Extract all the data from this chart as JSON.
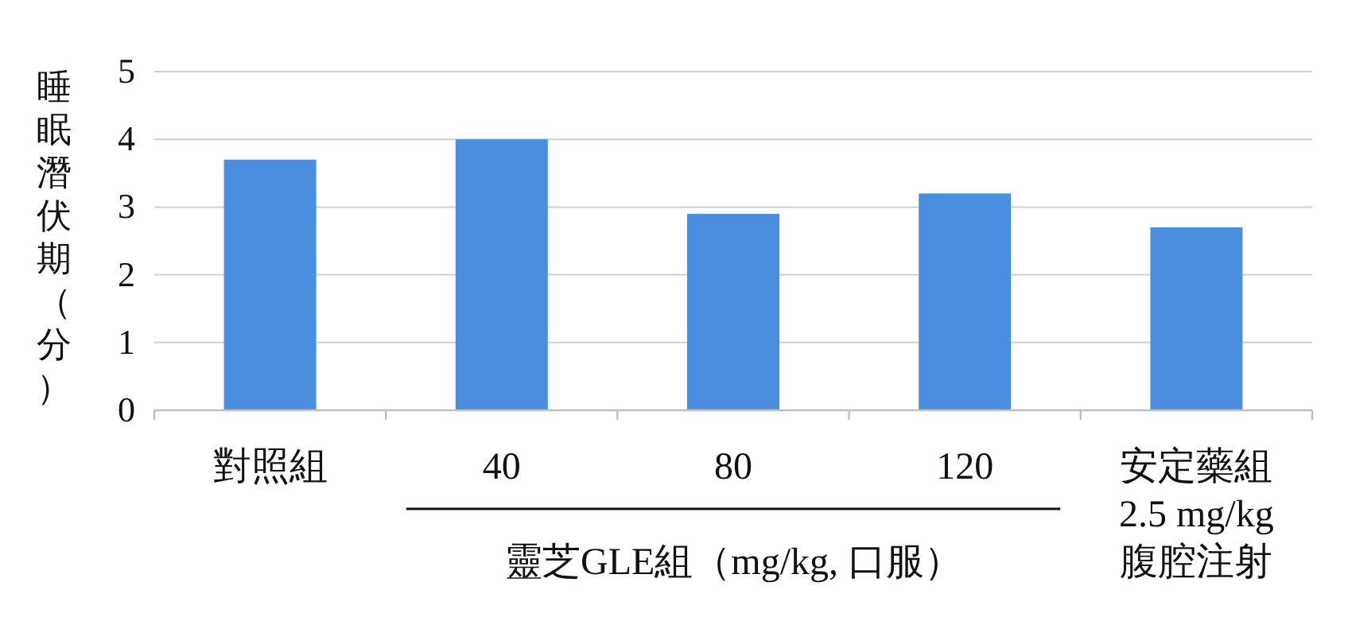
{
  "chart_data": {
    "type": "bar",
    "ylabel": "睡眠潛伏期（分）",
    "categories": [
      "對照組",
      "40",
      "80",
      "120",
      "安定藥組\n2.5 mg/kg\n腹腔注射"
    ],
    "values": [
      3.7,
      4.0,
      2.9,
      3.2,
      2.7
    ],
    "color": "#4a8ee0",
    "ylim": [
      0,
      5
    ],
    "yticks": [
      0,
      1,
      2,
      3,
      4,
      5
    ],
    "grid": "y",
    "annotations": [
      "靈芝GLE組（mg/kg, 口服）"
    ]
  }
}
